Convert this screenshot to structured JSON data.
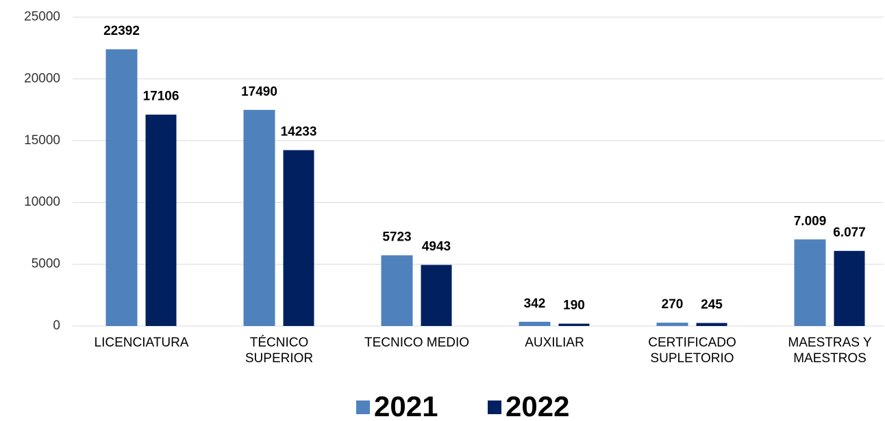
{
  "chart_data": {
    "type": "bar",
    "categories": [
      "LICENCIATURA",
      "TÉCNICO\nSUPERIOR",
      "TECNICO MEDIO",
      "AUXILIAR",
      "CERTIFICADO\nSUPLETORIO",
      "MAESTRAS Y\nMAESTROS"
    ],
    "series": [
      {
        "name": "2021",
        "color": "#4f81bd",
        "values": [
          22392,
          17490,
          5723,
          342,
          270,
          7009
        ],
        "value_labels": [
          "22392",
          "17490",
          "5723",
          "342",
          "270",
          "7.009"
        ]
      },
      {
        "name": "2022",
        "color": "#002060",
        "values": [
          17106,
          14233,
          4943,
          190,
          245,
          6077
        ],
        "value_labels": [
          "17106",
          "14233",
          "4943",
          "190",
          "245",
          "6.077"
        ]
      }
    ],
    "ylim": [
      0,
      25000
    ],
    "yticks": [
      0,
      5000,
      10000,
      15000,
      20000,
      25000
    ],
    "grid": true,
    "legend": "bottom"
  }
}
